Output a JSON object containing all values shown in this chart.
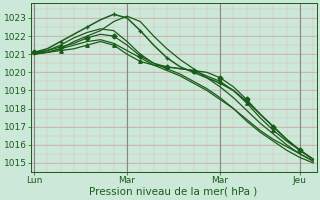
{
  "bg_color": "#cce8d8",
  "plot_bg_color": "#cce8d8",
  "line_color": "#1a5c1a",
  "ylim": [
    1014.5,
    1023.8
  ],
  "yticks": [
    1015,
    1016,
    1017,
    1018,
    1019,
    1020,
    1021,
    1022,
    1023
  ],
  "xlabel": "Pression niveau de la mer( hPa )",
  "xlabel_fontsize": 7.5,
  "tick_fontsize": 6.5,
  "xtick_labels": [
    "Lun",
    "Mar",
    "Mar",
    "Jeu"
  ],
  "xtick_positions": [
    0,
    56,
    112,
    160
  ],
  "xlim": [
    -2,
    170
  ],
  "lines": [
    {
      "x": [
        0,
        8,
        16,
        24,
        32,
        40,
        48,
        56,
        64,
        72,
        80,
        88,
        96,
        104,
        112,
        120,
        128,
        136,
        144,
        152,
        160,
        168
      ],
      "y": [
        1021.0,
        1021.1,
        1021.3,
        1021.5,
        1021.7,
        1021.8,
        1021.6,
        1021.2,
        1020.8,
        1020.4,
        1020.1,
        1019.8,
        1019.4,
        1019.0,
        1018.5,
        1018.0,
        1017.4,
        1016.8,
        1016.3,
        1015.9,
        1015.5,
        1015.1
      ],
      "style": "-",
      "lw": 0.9,
      "marker": null
    },
    {
      "x": [
        0,
        8,
        16,
        24,
        32,
        40,
        48,
        56,
        64,
        72,
        80,
        88,
        96,
        104,
        112,
        120,
        128,
        136,
        144,
        152,
        160,
        168
      ],
      "y": [
        1021.0,
        1021.2,
        1021.5,
        1021.9,
        1022.2,
        1022.4,
        1022.3,
        1021.7,
        1021.0,
        1020.5,
        1020.2,
        1019.9,
        1019.5,
        1019.1,
        1018.6,
        1018.0,
        1017.3,
        1016.7,
        1016.2,
        1015.7,
        1015.3,
        1015.0
      ],
      "style": "-",
      "lw": 0.9,
      "marker": null
    },
    {
      "x": [
        0,
        8,
        16,
        24,
        32,
        40,
        48,
        56,
        64,
        72,
        80,
        88,
        96,
        104,
        112,
        120,
        128,
        136,
        144,
        152,
        160,
        168
      ],
      "y": [
        1021.0,
        1021.1,
        1021.3,
        1021.7,
        1022.0,
        1022.3,
        1022.8,
        1023.1,
        1022.8,
        1022.0,
        1021.3,
        1020.7,
        1020.2,
        1019.7,
        1019.2,
        1018.6,
        1017.9,
        1017.2,
        1016.6,
        1016.0,
        1015.5,
        1015.1
      ],
      "style": "-",
      "lw": 0.9,
      "marker": null
    },
    {
      "x": [
        0,
        8,
        16,
        24,
        32,
        40,
        48,
        56,
        64,
        72,
        80,
        88,
        96,
        104,
        112,
        120,
        128,
        136,
        144,
        152,
        160,
        168
      ],
      "y": [
        1021.1,
        1021.3,
        1021.7,
        1022.1,
        1022.5,
        1022.9,
        1023.2,
        1023.0,
        1022.3,
        1021.5,
        1020.8,
        1020.3,
        1020.0,
        1019.7,
        1019.4,
        1019.0,
        1018.4,
        1017.7,
        1017.0,
        1016.3,
        1015.7,
        1015.2
      ],
      "style": "-",
      "lw": 1.1,
      "marker": "+"
    },
    {
      "x": [
        0,
        8,
        16,
        24,
        32,
        40,
        48,
        56,
        64,
        72,
        80,
        88,
        96,
        104,
        112,
        120,
        128,
        136,
        144,
        152,
        160,
        168
      ],
      "y": [
        1021.1,
        1021.2,
        1021.4,
        1021.6,
        1021.9,
        1022.1,
        1022.0,
        1021.5,
        1020.9,
        1020.5,
        1020.3,
        1020.2,
        1020.1,
        1020.0,
        1019.7,
        1019.2,
        1018.5,
        1017.7,
        1017.0,
        1016.3,
        1015.7,
        1015.2
      ],
      "style": "-",
      "lw": 0.9,
      "marker": "D"
    },
    {
      "x": [
        0,
        8,
        16,
        24,
        32,
        40,
        48,
        56,
        64,
        72,
        80,
        88,
        96,
        104,
        112,
        120,
        128,
        136,
        144,
        152,
        160,
        168
      ],
      "y": [
        1021.1,
        1021.1,
        1021.2,
        1021.3,
        1021.5,
        1021.7,
        1021.5,
        1021.0,
        1020.6,
        1020.4,
        1020.3,
        1020.2,
        1020.1,
        1019.8,
        1019.5,
        1019.0,
        1018.3,
        1017.5,
        1016.8,
        1016.2,
        1015.7,
        1015.2
      ],
      "style": "-",
      "lw": 0.9,
      "marker": "^"
    }
  ],
  "vlines": [
    0,
    56,
    112,
    160
  ],
  "vline_color": "#888888",
  "vline_lw": 0.8,
  "major_grid_color": "#cc9999",
  "major_grid_lw": 0.4,
  "minor_grid_color": "#ddbbbb",
  "minor_grid_lw": 0.3
}
